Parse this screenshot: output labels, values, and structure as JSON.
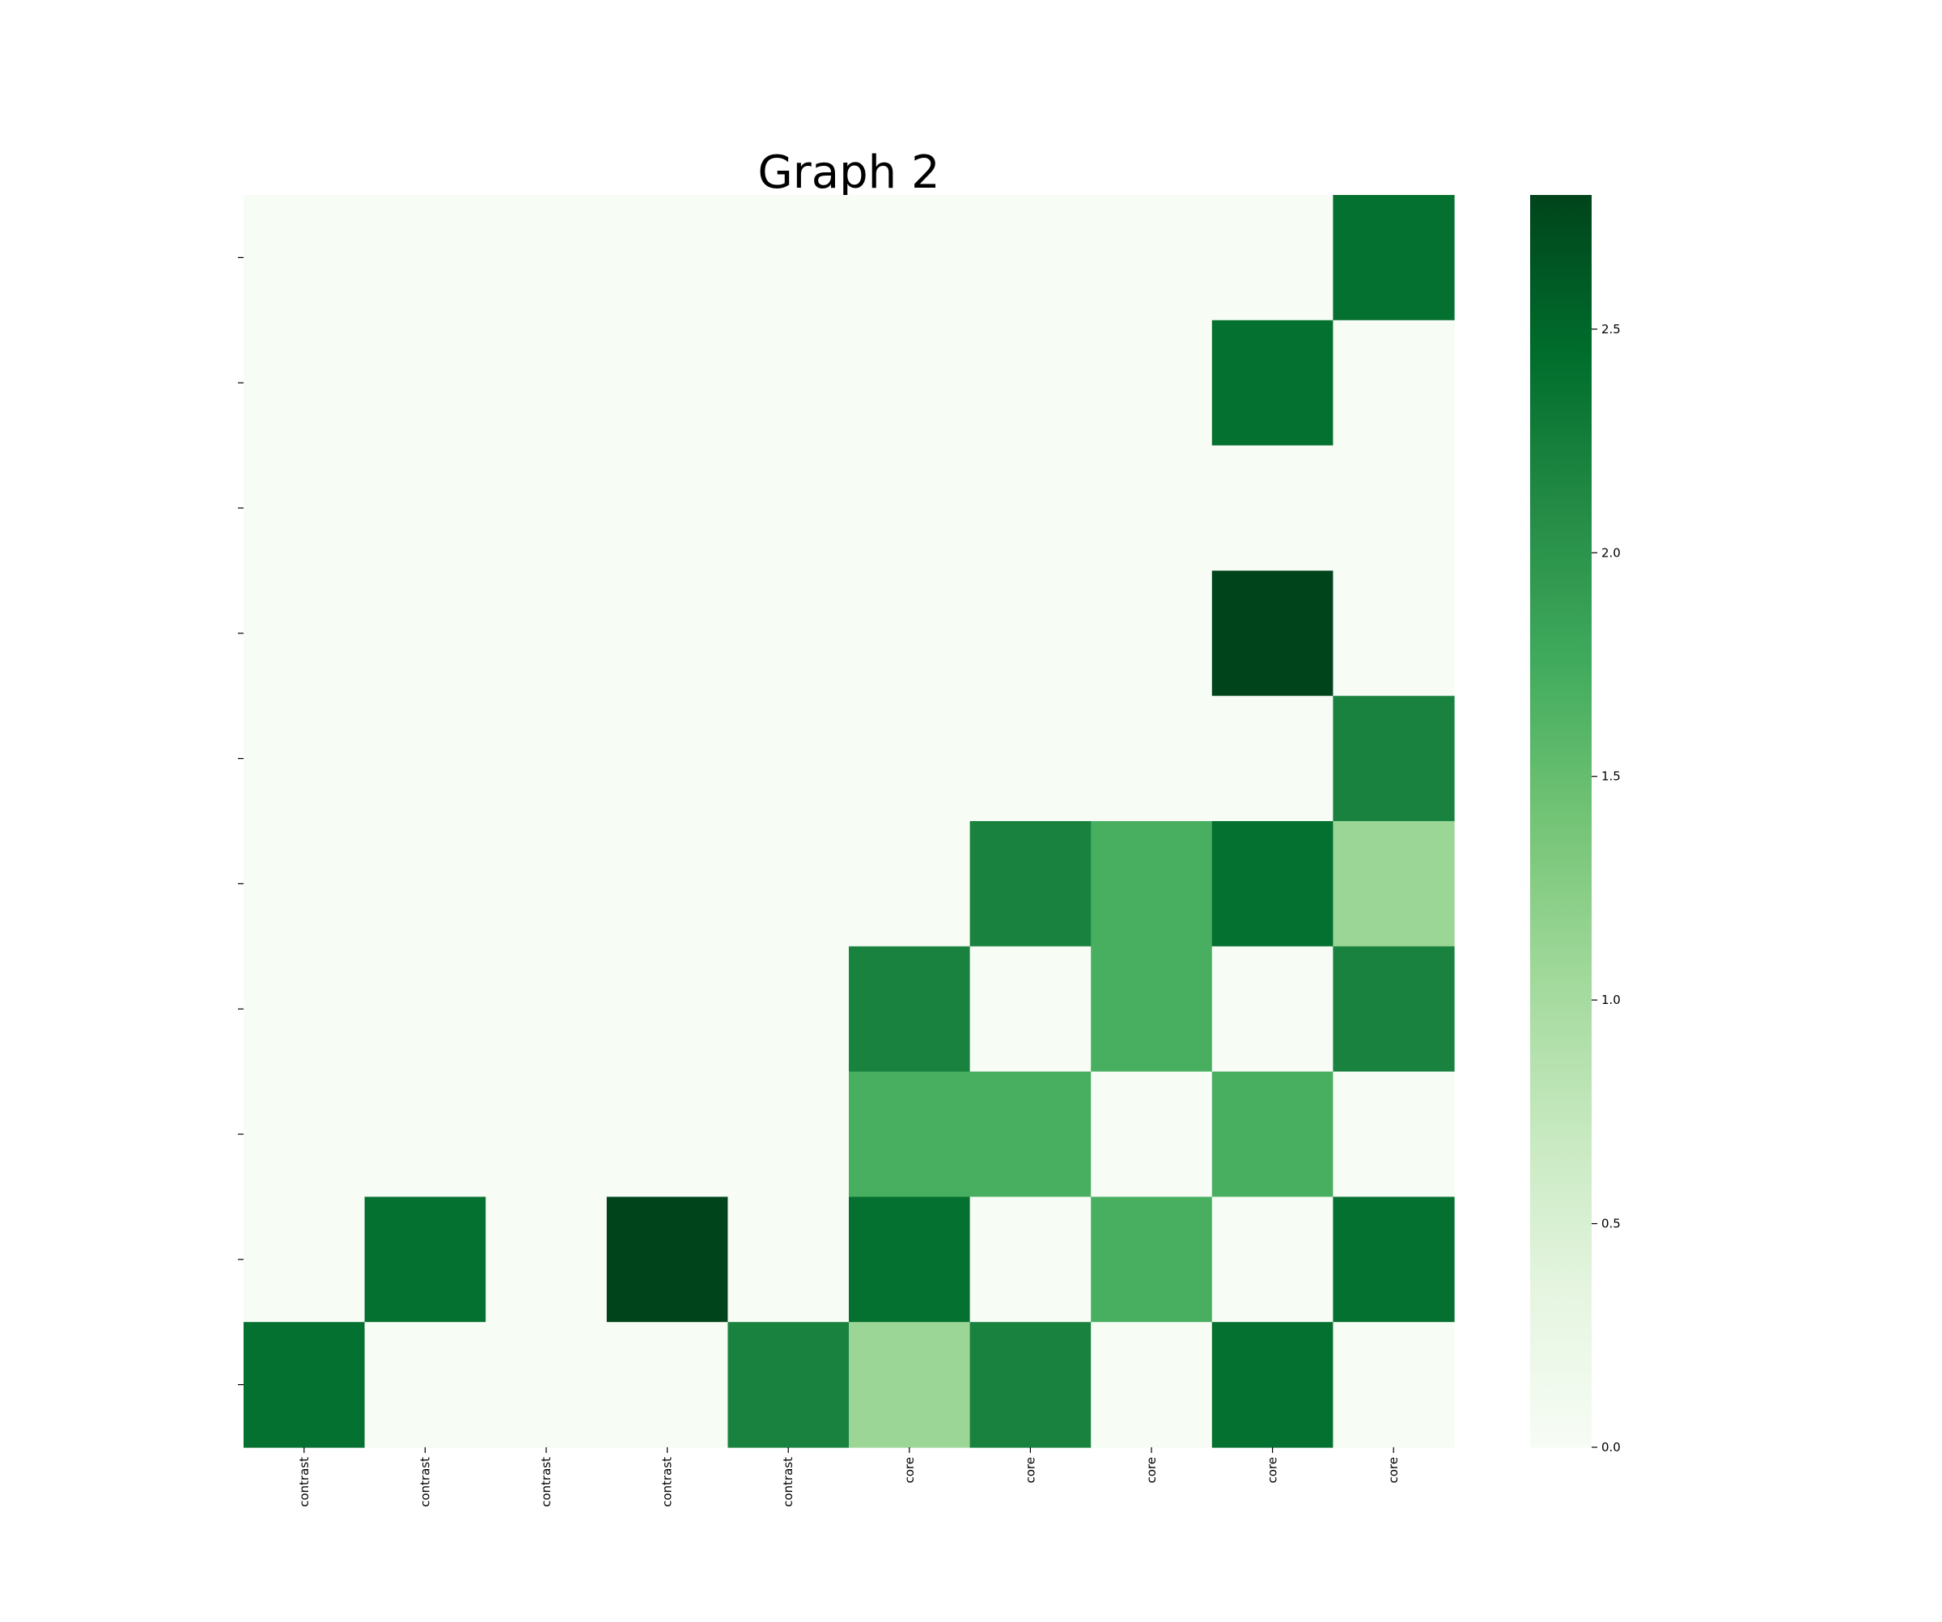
{
  "chart_data": {
    "type": "heatmap",
    "title": "Graph 2",
    "xlabel": "",
    "ylabel": "",
    "x_tick_labels": [
      "contrast",
      "contrast",
      "contrast",
      "contrast",
      "contrast",
      "core",
      "core",
      "core",
      "core",
      "core"
    ],
    "y_tick_labels": [
      "",
      "",
      "",
      "",
      "",
      "",
      "",
      "",
      "",
      ""
    ],
    "values": [
      [
        0,
        0,
        0,
        0,
        0,
        0,
        0,
        0,
        0,
        2.4
      ],
      [
        0,
        0,
        0,
        0,
        0,
        0,
        0,
        0,
        2.4,
        0
      ],
      [
        0,
        0,
        0,
        0,
        0,
        0,
        0,
        0,
        0,
        0
      ],
      [
        0,
        0,
        0,
        0,
        0,
        0,
        0,
        0,
        2.8,
        0
      ],
      [
        0,
        0,
        0,
        0,
        0,
        0,
        0,
        0,
        0,
        2.2
      ],
      [
        0,
        0,
        0,
        0,
        0,
        0,
        2.2,
        1.7,
        2.4,
        1.1
      ],
      [
        0,
        0,
        0,
        0,
        0,
        2.2,
        0,
        1.7,
        0,
        2.2
      ],
      [
        0,
        0,
        0,
        0,
        0,
        1.7,
        1.7,
        0,
        1.7,
        0
      ],
      [
        0,
        2.4,
        0,
        2.8,
        0,
        2.4,
        0,
        1.7,
        0,
        2.4
      ],
      [
        2.4,
        0,
        0,
        0,
        2.2,
        1.1,
        2.2,
        0,
        2.4,
        0
      ]
    ],
    "vmin": 0,
    "vmax": 2.8,
    "colormap": "Greens",
    "colorbar_ticks": [
      0.0,
      0.5,
      1.0,
      1.5,
      2.0,
      2.5
    ],
    "colorbar_tick_labels": [
      "0.0",
      "0.5",
      "1.0",
      "1.5",
      "2.0",
      "2.5"
    ],
    "grid": false,
    "legend": "colorbar-right"
  }
}
